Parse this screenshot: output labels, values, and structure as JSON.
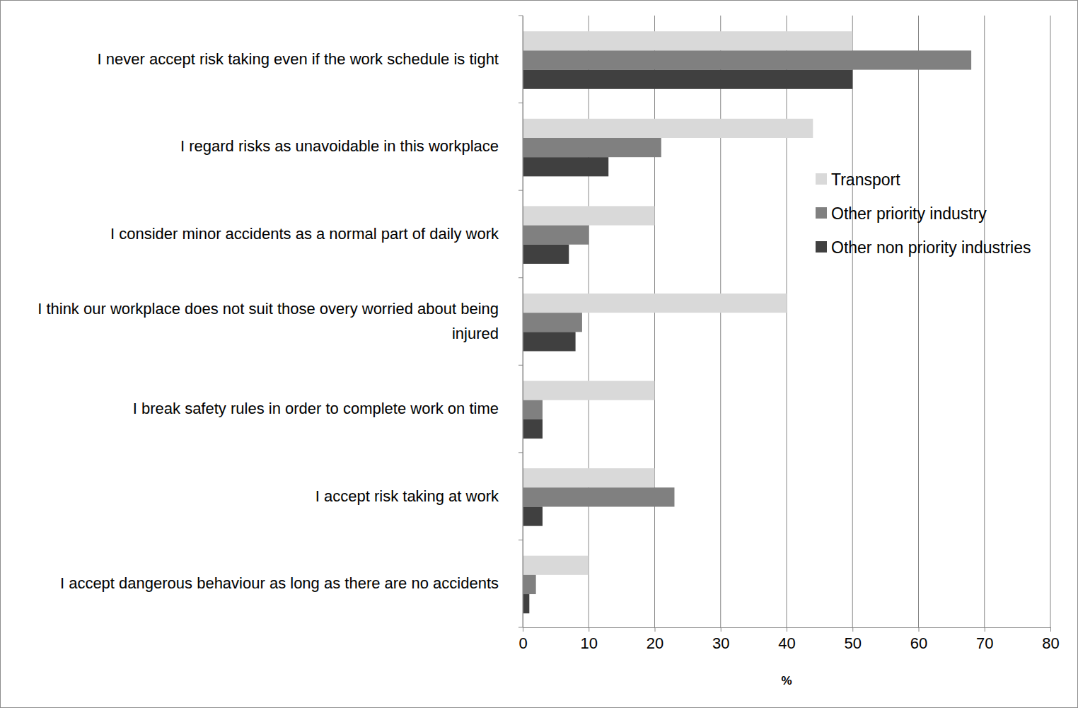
{
  "chart_data": {
    "type": "bar",
    "orientation": "horizontal",
    "grid": true,
    "legend": "right",
    "x_label": "%",
    "categories": [
      "I never accept risk taking even if the work schedule is tight",
      "I regard risks as unavoidable in this workplace",
      "I consider minor accidents as a normal part of daily work",
      "I think our workplace does not suit those overy worried about being injured",
      "I break safety rules in order to complete work on time",
      "I accept risk taking at work",
      "I accept dangerous behaviour as long as there are no accidents"
    ],
    "series": [
      {
        "name": "Transport",
        "color": "#d9d9d9",
        "values": [
          50,
          44,
          20,
          40,
          20,
          20,
          10
        ]
      },
      {
        "name": "Other priority industry",
        "color": "#808080",
        "values": [
          68,
          21,
          10,
          9,
          3,
          23,
          2
        ]
      },
      {
        "name": "Other non priority industries",
        "color": "#404040",
        "values": [
          50,
          13,
          7,
          8,
          3,
          3,
          1
        ]
      }
    ],
    "xlim": [
      0,
      80
    ],
    "xticks": [
      0,
      10,
      20,
      30,
      40,
      50,
      60,
      70,
      80
    ]
  }
}
